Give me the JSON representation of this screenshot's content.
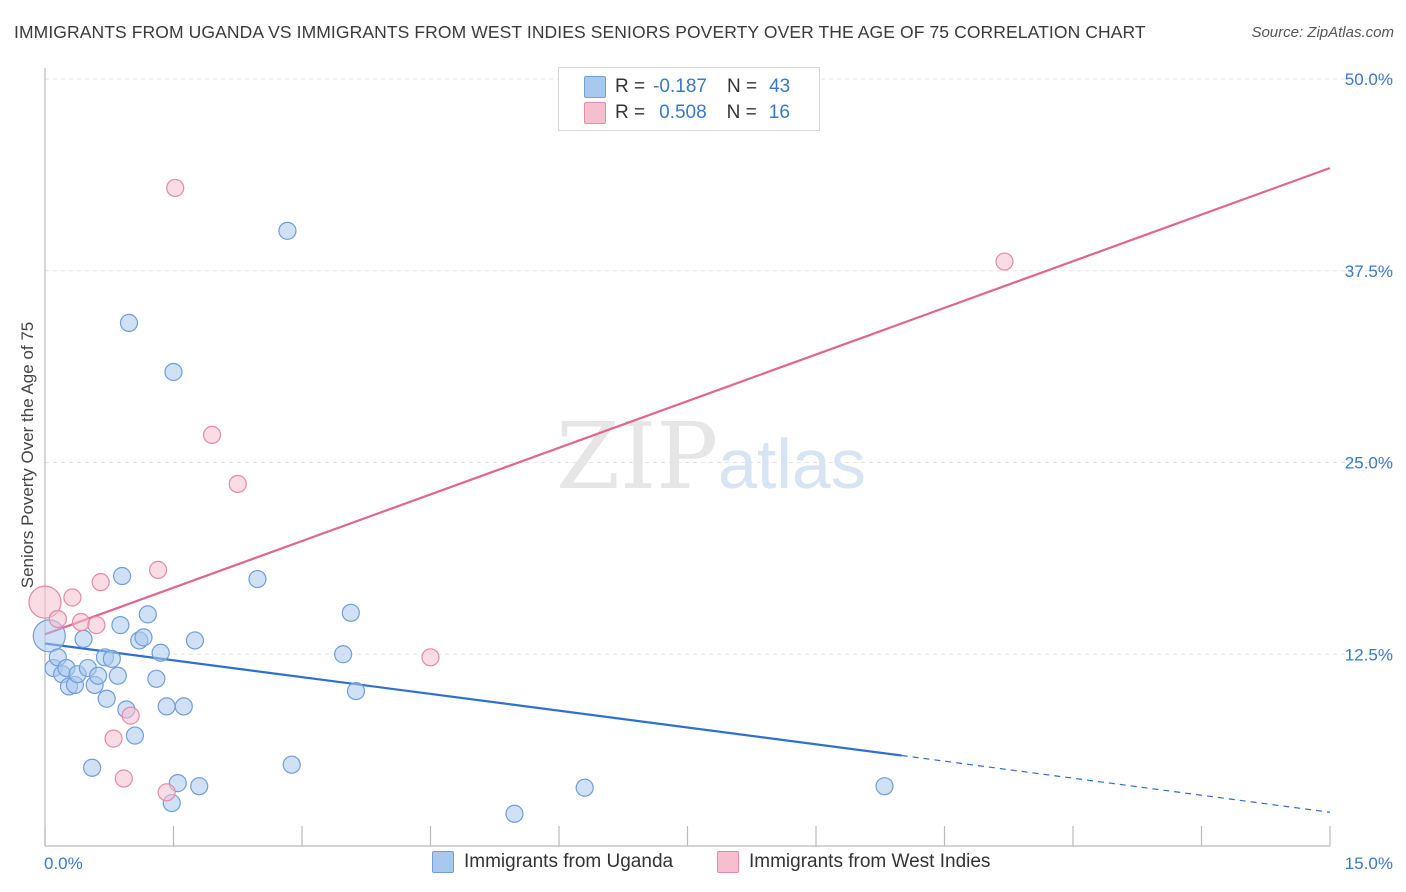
{
  "title": "IMMIGRANTS FROM UGANDA VS IMMIGRANTS FROM WEST INDIES SENIORS POVERTY OVER THE AGE OF 75 CORRELATION CHART",
  "source": "Source: ZipAtlas.com",
  "watermark": {
    "zip": "ZIP",
    "atlas": "atlas"
  },
  "colors": {
    "uganda_fill": "#a9c8ef",
    "uganda_stroke": "#6f9fd8",
    "uganda_line": "#2f6fce",
    "westindies_fill": "#f6bfd0",
    "westindies_stroke": "#e58aa7",
    "westindies_line": "#e0658f",
    "axis_text": "#3a78c8",
    "grid": "#e3e3e3"
  },
  "legend_top": [
    {
      "r_label": "R =",
      "r_value": "-0.187",
      "n_label": "N =",
      "n_value": "43"
    },
    {
      "r_label": "R =",
      "r_value": "0.508",
      "n_label": "N =",
      "n_value": "16"
    }
  ],
  "chart_data": {
    "type": "scatter",
    "title": "IMMIGRANTS FROM UGANDA VS IMMIGRANTS FROM WEST INDIES SENIORS POVERTY OVER THE AGE OF 75 CORRELATION CHART",
    "xlabel": "",
    "ylabel": "Seniors Poverty Over the Age of 75",
    "xlim": [
      0,
      15
    ],
    "ylim": [
      0,
      50
    ],
    "x_tick_labels": [
      "0.0%",
      "15.0%"
    ],
    "y_ticks": [
      12.5,
      25.0,
      37.5,
      50.0
    ],
    "y_tick_labels": [
      "12.5%",
      "25.0%",
      "37.5%",
      "50.0%"
    ],
    "grid": true,
    "legend_position": "bottom-center",
    "series": [
      {
        "name": "Immigrants from Uganda",
        "points": [
          [
            0.05,
            13.7,
            "big"
          ],
          [
            0.1,
            11.6
          ],
          [
            0.15,
            12.3
          ],
          [
            0.2,
            11.2
          ],
          [
            0.25,
            11.6
          ],
          [
            0.28,
            10.4
          ],
          [
            0.35,
            10.5
          ],
          [
            0.38,
            11.2
          ],
          [
            0.45,
            13.5
          ],
          [
            0.5,
            11.6
          ],
          [
            0.55,
            5.1
          ],
          [
            0.58,
            10.5
          ],
          [
            0.62,
            11.1
          ],
          [
            0.7,
            12.3
          ],
          [
            0.72,
            9.6
          ],
          [
            0.78,
            12.2
          ],
          [
            0.85,
            11.1
          ],
          [
            0.88,
            14.4
          ],
          [
            0.9,
            17.6
          ],
          [
            0.95,
            8.9
          ],
          [
            0.98,
            34.1
          ],
          [
            1.05,
            7.2
          ],
          [
            1.1,
            13.4
          ],
          [
            1.15,
            13.6
          ],
          [
            1.2,
            15.1
          ],
          [
            1.3,
            10.9
          ],
          [
            1.35,
            12.6
          ],
          [
            1.42,
            9.1
          ],
          [
            1.48,
            2.8
          ],
          [
            1.5,
            30.9
          ],
          [
            1.55,
            4.1
          ],
          [
            1.62,
            9.1
          ],
          [
            1.75,
            13.4
          ],
          [
            1.8,
            3.9
          ],
          [
            2.48,
            17.4
          ],
          [
            2.83,
            40.1
          ],
          [
            2.88,
            5.3
          ],
          [
            3.48,
            12.5
          ],
          [
            3.57,
            15.2
          ],
          [
            3.63,
            10.1
          ],
          [
            5.48,
            2.1
          ],
          [
            6.3,
            3.8
          ],
          [
            9.8,
            3.9
          ]
        ],
        "trend": {
          "x0": 0,
          "y0": 13.2,
          "x1": 10.0,
          "y1": 5.9,
          "dash_x1": 15,
          "dash_y1": 2.2
        }
      },
      {
        "name": "Immigrants from West Indies",
        "points": [
          [
            0.0,
            15.9,
            "big"
          ],
          [
            0.15,
            14.8
          ],
          [
            0.32,
            16.2
          ],
          [
            0.42,
            14.6
          ],
          [
            0.6,
            14.4
          ],
          [
            0.65,
            17.2
          ],
          [
            0.8,
            7.0
          ],
          [
            0.92,
            4.4
          ],
          [
            1.0,
            8.5
          ],
          [
            1.32,
            18.0
          ],
          [
            1.42,
            3.5
          ],
          [
            1.52,
            42.9
          ],
          [
            1.95,
            26.8
          ],
          [
            2.25,
            23.6
          ],
          [
            4.5,
            12.3
          ],
          [
            11.2,
            38.1
          ]
        ],
        "trend": {
          "x0": 0,
          "y0": 13.8,
          "x1": 15,
          "y1": 44.2
        }
      }
    ]
  },
  "legend_bottom": [
    {
      "label": "Immigrants from Uganda"
    },
    {
      "label": "Immigrants from West Indies"
    }
  ]
}
